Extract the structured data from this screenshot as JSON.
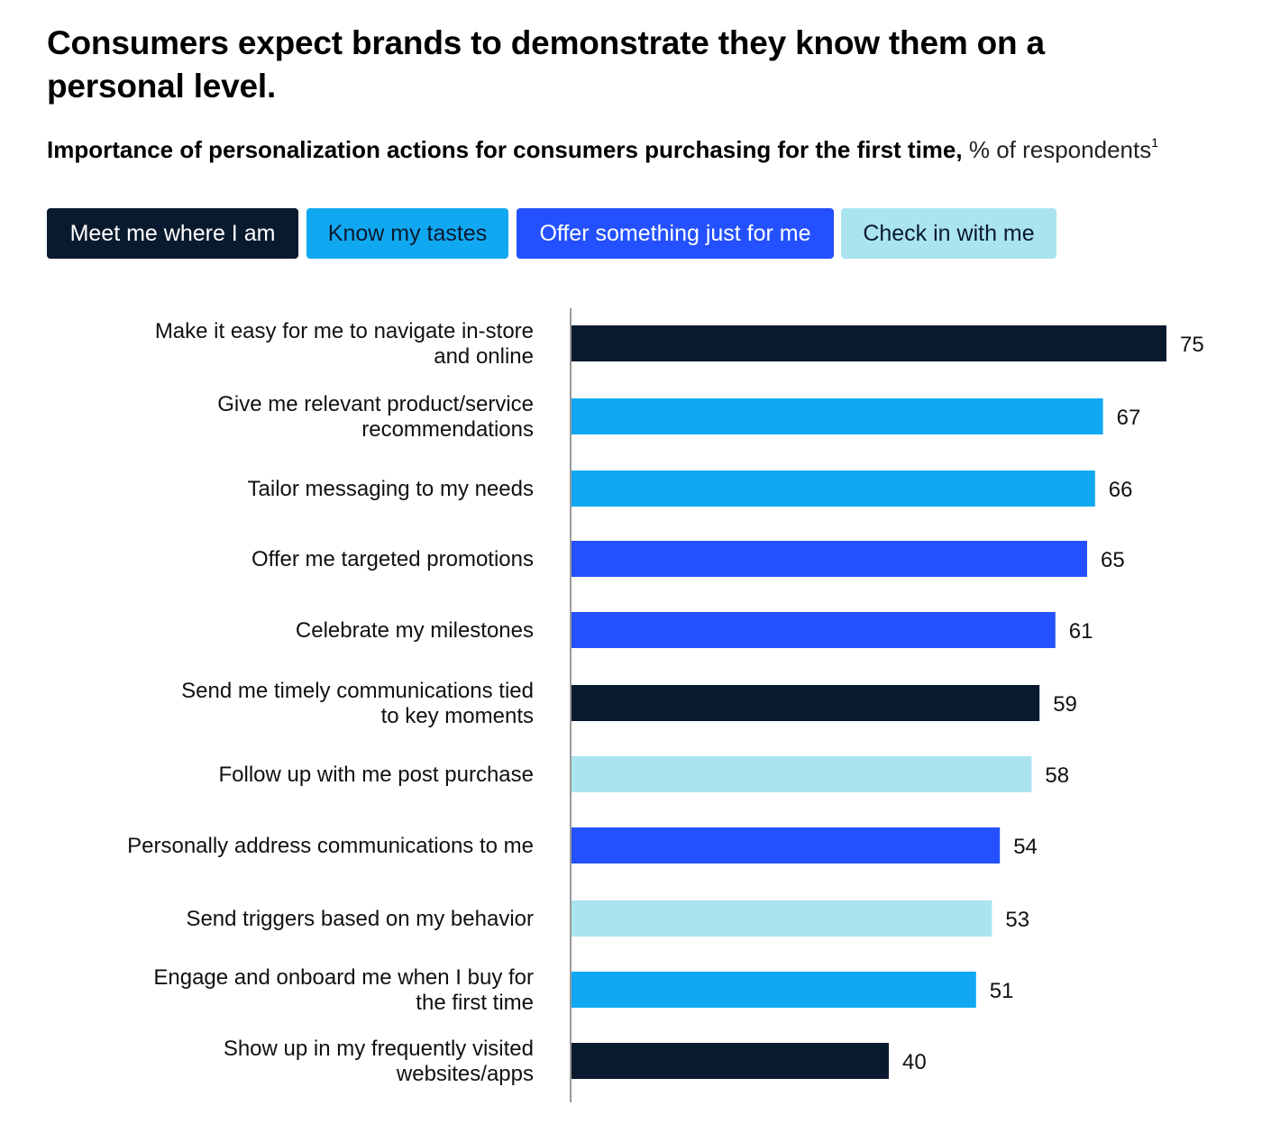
{
  "title": "Consumers expect brands to demonstrate they know them on a personal level.",
  "subtitle": {
    "main": "Importance of personalization actions for consumers purchasing for the first time,",
    "unit": "% of respondents",
    "footnote": "1"
  },
  "legend": [
    {
      "label": "Meet me where I am",
      "color": "#0a1a2e",
      "text_color": "#ffffff"
    },
    {
      "label": "Know my tastes",
      "color": "#11a8f2",
      "text_color": "#0a1a2e"
    },
    {
      "label": "Offer something just for me",
      "color": "#2451ff",
      "text_color": "#ffffff"
    },
    {
      "label": "Check in with me",
      "color": "#aae4ef",
      "text_color": "#0a1a2e"
    }
  ],
  "chart_data": {
    "type": "bar",
    "orientation": "horizontal",
    "categories": [
      "Make it easy for me to navigate in-store and online",
      "Give me relevant product/service recommendations",
      "Tailor messaging to my needs",
      "Offer me targeted promotions",
      "Celebrate my milestones",
      "Send me timely communications tied to key moments",
      "Follow up with me post purchase",
      "Personally address communications to me",
      "Send triggers based on my behavior",
      "Engage and onboard me when I buy for the first time",
      "Show up in my frequently visited websites/apps"
    ],
    "category_lines": [
      [
        "Make it easy for me to navigate in-store",
        "and online"
      ],
      [
        "Give me relevant product/service",
        "recommendations"
      ],
      [
        "Tailor messaging to my needs"
      ],
      [
        "Offer me targeted promotions"
      ],
      [
        "Celebrate my milestones"
      ],
      [
        "Send me timely communications tied",
        "to key moments"
      ],
      [
        "Follow up with me post purchase"
      ],
      [
        "Personally address communications to me"
      ],
      [
        "Send triggers based on my behavior"
      ],
      [
        "Engage and onboard me when I buy for",
        "the first time"
      ],
      [
        "Show up in my frequently visited",
        "websites/apps"
      ]
    ],
    "values": [
      75,
      67,
      66,
      65,
      61,
      59,
      58,
      54,
      53,
      51,
      40
    ],
    "groups": [
      "Meet me where I am",
      "Know my tastes",
      "Know my tastes",
      "Offer something just for me",
      "Offer something just for me",
      "Meet me where I am",
      "Check in with me",
      "Offer something just for me",
      "Check in with me",
      "Know my tastes",
      "Meet me where I am"
    ],
    "xlim": [
      0,
      75
    ],
    "grid": false,
    "legend_position": "top"
  }
}
